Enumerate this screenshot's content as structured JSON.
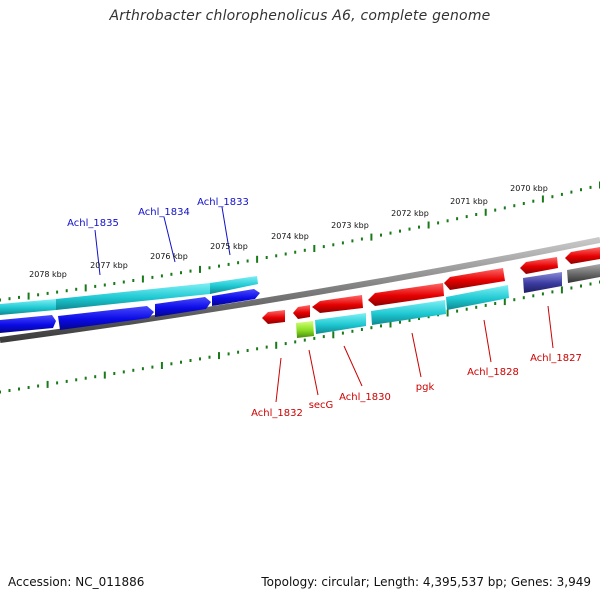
{
  "title": "Arthrobacter chlorophenolicus A6, complete genome",
  "accession": "Accession: NC_011886",
  "topology": "Topology: circular; Length: 4,395,537 bp; Genes: 3,949",
  "ticks": [
    "2078 kbp",
    "2077 kbp",
    "2076 kbp",
    "2075 kbp",
    "2074 kbp",
    "2073 kbp",
    "2072 kbp",
    "2071 kbp",
    "2070 kbp"
  ],
  "labels_forward": [
    "Achl_1835",
    "Achl_1834",
    "Achl_1833"
  ],
  "labels_reverse": [
    "Achl_1832",
    "secG",
    "Achl_1830",
    "pgk",
    "Achl_1828",
    "Achl_1827"
  ],
  "colors": {
    "forward_label": "#1010c8",
    "reverse_label": "#cc0000",
    "tick": "#1a7a1a",
    "backbone": "#7d7d7d",
    "cds_blue": "#0a0ae6",
    "cds_cyan": "#1ec8d2",
    "cds_red": "#e60000",
    "cds_green": "#88dd22",
    "cds_purple": "#3a3aa0",
    "cds_gray": "#555555"
  }
}
